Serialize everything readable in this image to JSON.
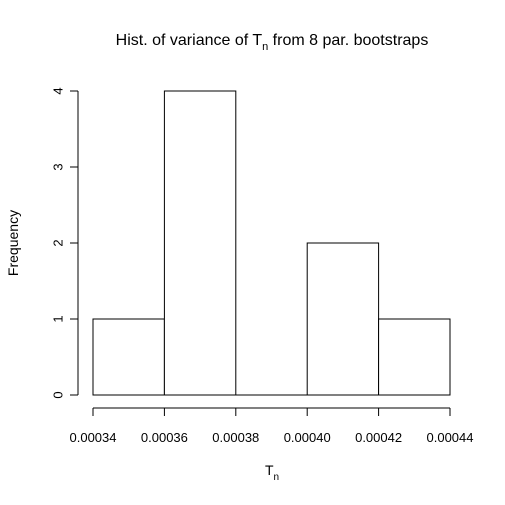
{
  "chart_data": {
    "type": "bar",
    "title_main": "Hist. of variance of T",
    "title_sub": "n",
    "title_rest": " from 8 par. bootstraps",
    "xlabel_main": "T",
    "xlabel_sub": "n",
    "ylabel": "Frequency",
    "bins": [
      {
        "start": 0.00034,
        "end": 0.00036,
        "count": 1
      },
      {
        "start": 0.00036,
        "end": 0.00038,
        "count": 4
      },
      {
        "start": 0.00038,
        "end": 0.0004,
        "count": 0
      },
      {
        "start": 0.0004,
        "end": 0.00042,
        "count": 2
      },
      {
        "start": 0.00042,
        "end": 0.00044,
        "count": 1
      }
    ],
    "xlim": [
      0.00034,
      0.00044
    ],
    "ylim": [
      0,
      4
    ],
    "xticks": [
      "0.00034",
      "0.00036",
      "0.00038",
      "0.00040",
      "0.00042",
      "0.00044"
    ],
    "yticks": [
      "0",
      "1",
      "2",
      "3",
      "4"
    ],
    "grid": false,
    "colors": {
      "bar_fill": "#ffffff",
      "bar_stroke": "#000000",
      "axis": "#000000"
    }
  }
}
